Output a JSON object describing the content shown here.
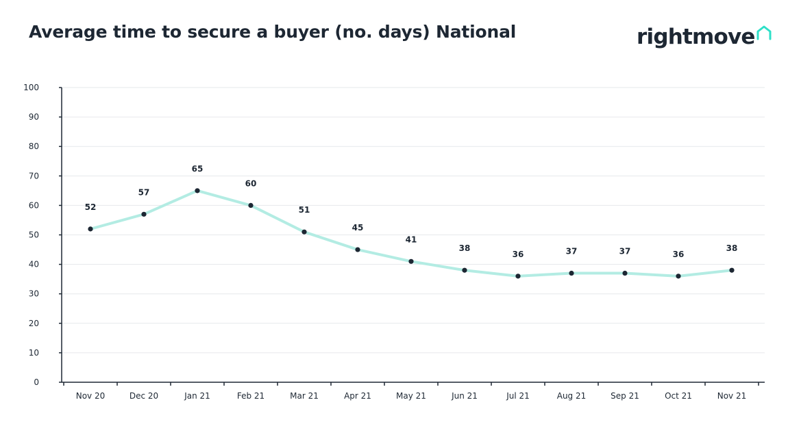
{
  "header": {
    "title": "Average time to secure a buyer (no. days) National",
    "brand": "rightmove"
  },
  "icons": {
    "logo_house": "house-outline-icon"
  },
  "colors": {
    "line": "#b3ece3",
    "point": "#1d2733",
    "axis": "#1d2733",
    "grid": "#e6e8eb",
    "text": "#1d2733",
    "brand_accent": "#2ee0c8"
  },
  "chart_data": {
    "type": "line",
    "title": "Average time to secure a buyer (no. days) National",
    "xlabel": "",
    "ylabel": "",
    "ylim": [
      0,
      100
    ],
    "yticks": [
      0,
      10,
      20,
      30,
      40,
      50,
      60,
      70,
      80,
      90,
      100
    ],
    "grid": true,
    "legend": "none",
    "categories": [
      "Nov 20",
      "Dec 20",
      "Jan 21",
      "Feb 21",
      "Mar 21",
      "Apr 21",
      "May 21",
      "Jun 21",
      "Jul 21",
      "Aug 21",
      "Sep 21",
      "Oct 21",
      "Nov 21"
    ],
    "series": [
      {
        "name": "National",
        "values": [
          52,
          57,
          65,
          60,
          51,
          45,
          41,
          38,
          36,
          37,
          37,
          36,
          38
        ],
        "labels": [
          "52",
          "57",
          "65",
          "60",
          "51",
          "45",
          "41",
          "38",
          "36",
          "37",
          "37",
          "36",
          "38"
        ]
      }
    ]
  }
}
